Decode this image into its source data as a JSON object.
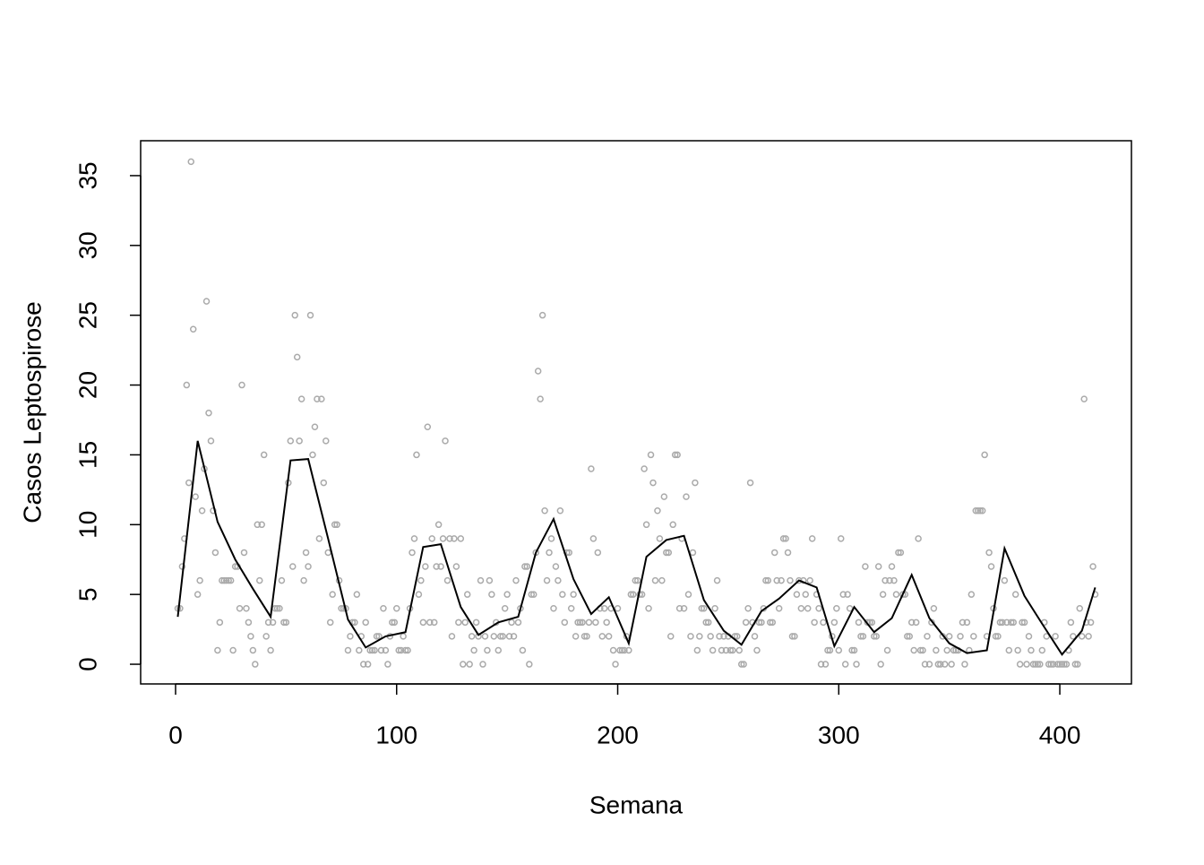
{
  "chart_data": {
    "type": "scatter-line",
    "x_label": "Semana",
    "y_label": "Casos Leptospirose",
    "xlim": [
      -15.8,
      432.4
    ],
    "ylim": [
      -1.41,
      37.5
    ],
    "xticks": [
      0,
      100,
      200,
      300,
      400
    ],
    "yticks": [
      0,
      5,
      10,
      15,
      20,
      25,
      30,
      35
    ],
    "series": [
      {
        "kind": "points",
        "color": "#aaaaaa",
        "x": [
          1,
          2,
          3,
          4,
          5,
          6,
          7,
          8,
          9,
          10,
          11,
          12,
          13,
          14,
          15,
          16,
          17,
          18,
          19,
          20,
          21,
          22,
          23,
          24,
          25,
          26,
          27,
          28,
          29,
          30,
          31,
          32,
          33,
          34,
          35,
          36,
          37,
          38,
          39,
          40,
          41,
          42,
          43,
          44,
          45,
          46,
          47,
          48,
          49,
          50,
          51,
          52,
          53,
          54,
          55,
          56,
          57,
          58,
          59,
          60,
          61,
          62,
          63,
          64,
          65,
          66,
          67,
          68,
          69,
          70,
          71,
          72,
          73,
          74,
          75,
          76,
          77,
          78,
          79,
          80,
          81,
          82,
          83,
          84,
          85,
          86,
          87,
          88,
          89,
          90,
          91,
          92,
          93,
          94,
          95,
          96,
          97,
          98,
          99,
          100,
          101,
          102,
          103,
          104,
          105,
          106,
          107,
          108,
          109,
          110,
          111,
          112,
          113,
          114,
          115,
          116,
          117,
          118,
          119,
          120,
          121,
          122,
          123,
          124,
          125,
          126,
          127,
          128,
          129,
          130,
          131,
          132,
          133,
          134,
          135,
          136,
          137,
          138,
          139,
          140,
          141,
          142,
          143,
          144,
          145,
          146,
          147,
          148,
          149,
          150,
          151,
          152,
          153,
          154,
          155,
          156,
          157,
          158,
          159,
          160,
          161,
          162,
          163,
          164,
          165,
          166,
          167,
          168,
          169,
          170,
          171,
          172,
          173,
          174,
          175,
          176,
          177,
          178,
          179,
          180,
          181,
          182,
          183,
          184,
          185,
          186,
          187,
          188,
          189,
          190,
          191,
          192,
          193,
          194,
          195,
          196,
          197,
          198,
          199,
          200,
          201,
          202,
          203,
          204,
          205,
          206,
          207,
          208,
          209,
          210,
          211,
          212,
          213,
          214,
          215,
          216,
          217,
          218,
          219,
          220,
          221,
          222,
          223,
          224,
          225,
          226,
          227,
          228,
          229,
          230,
          231,
          232,
          233,
          234,
          235,
          236,
          237,
          238,
          239,
          240,
          241,
          242,
          243,
          244,
          245,
          246,
          247,
          248,
          249,
          250,
          251,
          252,
          253,
          254,
          255,
          256,
          257,
          258,
          259,
          260,
          261,
          262,
          263,
          264,
          265,
          266,
          267,
          268,
          269,
          270,
          271,
          272,
          273,
          274,
          275,
          276,
          277,
          278,
          279,
          280,
          281,
          282,
          283,
          284,
          285,
          286,
          287,
          288,
          289,
          290,
          291,
          292,
          293,
          294,
          295,
          296,
          297,
          298,
          299,
          300,
          301,
          302,
          303,
          304,
          305,
          306,
          307,
          308,
          309,
          310,
          311,
          312,
          313,
          314,
          315,
          316,
          317,
          318,
          319,
          320,
          321,
          322,
          323,
          324,
          325,
          326,
          327,
          328,
          329,
          330,
          331,
          332,
          333,
          334,
          335,
          336,
          337,
          338,
          339,
          340,
          341,
          342,
          343,
          344,
          345,
          346,
          347,
          348,
          349,
          350,
          351,
          352,
          353,
          354,
          355,
          356,
          357,
          358,
          359,
          360,
          361,
          362,
          363,
          364,
          365,
          366,
          367,
          368,
          369,
          370,
          371,
          372,
          373,
          374,
          375,
          376,
          377,
          378,
          379,
          380,
          381,
          382,
          383,
          384,
          385,
          386,
          387,
          388,
          389,
          390,
          391,
          392,
          393,
          394,
          395,
          396,
          397,
          398,
          399,
          400,
          401,
          402,
          403,
          404,
          405,
          406,
          407,
          408,
          409,
          410,
          411,
          412,
          413,
          414,
          415,
          416
        ],
        "values": [
          4,
          4,
          7,
          9,
          20,
          13,
          36,
          24,
          12,
          5,
          6,
          11,
          14,
          26,
          18,
          16,
          11,
          8,
          1,
          3,
          6,
          6,
          6,
          6,
          6,
          1,
          7,
          7,
          4,
          20,
          8,
          4,
          3,
          2,
          1,
          0,
          10,
          6,
          10,
          15,
          2,
          3,
          1,
          3,
          4,
          4,
          4,
          6,
          3,
          3,
          13,
          16,
          7,
          25,
          22,
          16,
          19,
          6,
          8,
          7,
          25,
          15,
          17,
          19,
          9,
          19,
          13,
          16,
          8,
          3,
          5,
          10,
          10,
          6,
          4,
          4,
          4,
          1,
          2,
          3,
          3,
          5,
          1,
          2,
          0,
          3,
          0,
          1,
          1,
          1,
          2,
          2,
          1,
          4,
          1,
          0,
          2,
          3,
          3,
          4,
          1,
          1,
          2,
          1,
          1,
          4,
          8,
          9,
          15,
          5,
          6,
          3,
          7,
          17,
          3,
          9,
          3,
          7,
          10,
          7,
          9,
          16,
          6,
          9,
          2,
          9,
          7,
          3,
          9,
          0,
          3,
          5,
          0,
          2,
          1,
          3,
          2,
          6,
          0,
          2,
          1,
          6,
          5,
          2,
          3,
          1,
          2,
          2,
          4,
          5,
          2,
          3,
          2,
          6,
          3,
          4,
          1,
          7,
          7,
          0,
          5,
          5,
          8,
          21,
          19,
          25,
          11,
          6,
          8,
          9,
          4,
          7,
          6,
          11,
          5,
          3,
          8,
          8,
          4,
          5,
          2,
          3,
          3,
          3,
          2,
          2,
          3,
          14,
          9,
          3,
          8,
          4,
          2,
          4,
          3,
          2,
          4,
          1,
          0,
          4,
          1,
          1,
          1,
          2,
          1,
          5,
          5,
          6,
          6,
          5,
          5,
          14,
          10,
          4,
          15,
          13,
          6,
          11,
          9,
          6,
          12,
          8,
          8,
          2,
          10,
          15,
          15,
          4,
          9,
          4,
          12,
          5,
          2,
          8,
          13,
          1,
          2,
          4,
          4,
          3,
          3,
          2,
          1,
          4,
          6,
          2,
          1,
          2,
          1,
          2,
          1,
          1,
          2,
          2,
          1,
          0,
          0,
          3,
          4,
          13,
          3,
          2,
          1,
          3,
          3,
          4,
          6,
          6,
          3,
          3,
          8,
          6,
          4,
          6,
          9,
          9,
          8,
          6,
          2,
          2,
          5,
          6,
          4,
          6,
          5,
          4,
          6,
          9,
          3,
          5,
          4,
          0,
          3,
          0,
          1,
          1,
          2,
          3,
          4,
          1,
          9,
          5,
          0,
          5,
          4,
          1,
          1,
          0,
          3,
          2,
          2,
          7,
          3,
          3,
          3,
          2,
          2,
          7,
          0,
          5,
          6,
          1,
          6,
          7,
          6,
          5,
          8,
          8,
          5,
          5,
          2,
          2,
          3,
          1,
          3,
          9,
          1,
          1,
          0,
          2,
          0,
          3,
          4,
          1,
          0,
          0,
          2,
          0,
          1,
          2,
          0,
          1,
          1,
          1,
          2,
          3,
          0,
          3,
          1,
          5,
          2,
          11,
          11,
          11,
          11,
          15,
          2,
          8,
          7,
          4,
          2,
          2,
          3,
          3,
          6,
          3,
          1,
          3,
          3,
          5,
          1,
          0,
          3,
          3,
          0,
          2,
          1,
          0,
          0,
          0,
          0,
          1,
          3,
          2,
          0,
          0,
          0,
          2,
          0,
          0,
          0,
          0,
          0,
          1,
          3,
          2,
          0,
          0,
          4,
          2,
          19,
          3,
          2,
          3,
          7,
          5
        ]
      },
      {
        "kind": "line",
        "color": "#000000",
        "x": [
          1,
          10,
          19,
          27,
          35,
          43,
          52,
          60,
          69,
          78,
          86,
          95,
          104,
          112,
          120,
          129,
          137,
          146,
          155,
          163,
          171,
          180,
          188,
          196,
          205,
          213,
          222,
          230,
          239,
          248,
          256,
          265,
          273,
          282,
          290,
          298,
          307,
          316,
          324,
          333,
          341,
          350,
          358,
          367,
          375,
          384,
          392,
          401,
          410,
          416
        ],
        "values": [
          3.4,
          16,
          10.2,
          7.5,
          5.4,
          3.4,
          14.6,
          14.7,
          9,
          3.2,
          1.2,
          2,
          2.3,
          8.4,
          8.6,
          4.1,
          2.1,
          3,
          3.4,
          8,
          10.4,
          6.1,
          3.6,
          4.8,
          1.5,
          7.7,
          8.9,
          9.2,
          4.6,
          2.4,
          1.4,
          3.8,
          4.7,
          6,
          5.5,
          1.3,
          4.1,
          2.3,
          3.3,
          6.4,
          3.3,
          1.5,
          0.8,
          1,
          8.3,
          4.9,
          2.9,
          0.7,
          2.4,
          5.5
        ]
      }
    ]
  }
}
